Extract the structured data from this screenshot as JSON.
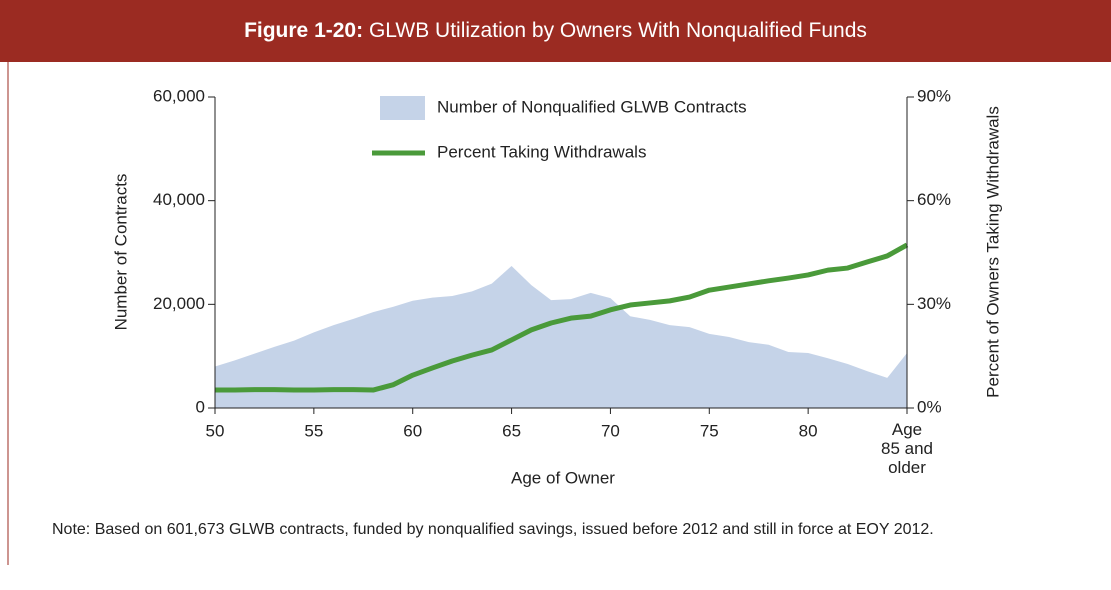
{
  "chart_data": {
    "type": "area_line",
    "figure_label": "Figure 1-20:",
    "title": "GLWB Utilization by Owners With Nonqualified Funds",
    "xlabel": "Age of Owner",
    "ylabel": "Number of Contracts",
    "y2label": "Percent of Owners Taking Withdrawals",
    "note": "Note: Based on 601,673 GLWB contracts, funded by nonqualified savings, issued before 2012 and still in force at EOY 2012.",
    "x": [
      50,
      51,
      52,
      53,
      54,
      55,
      56,
      57,
      58,
      59,
      60,
      61,
      62,
      63,
      64,
      65,
      66,
      67,
      68,
      69,
      70,
      71,
      72,
      73,
      74,
      75,
      76,
      77,
      78,
      79,
      80,
      81,
      82,
      83,
      84,
      85
    ],
    "xlim": [
      50,
      85
    ],
    "xticks": [
      50,
      55,
      60,
      65,
      70,
      75,
      80,
      {
        "value": 85,
        "label": "Age\n85 and\nolder"
      }
    ],
    "ylim": [
      0,
      60000
    ],
    "yticks": [
      0,
      {
        "value": 20000,
        "label": "20,000"
      },
      {
        "value": 40000,
        "label": "40,000"
      },
      {
        "value": 60000,
        "label": "60,000"
      }
    ],
    "y2lim": [
      0,
      90
    ],
    "y2ticks": [
      {
        "value": 0,
        "label": "0%"
      },
      {
        "value": 30,
        "label": "30%"
      },
      {
        "value": 60,
        "label": "60%"
      },
      {
        "value": 90,
        "label": "90%"
      }
    ],
    "series": [
      {
        "name": "Number of Nonqualified GLWB Contracts",
        "kind": "area",
        "color": "#c5d3e8",
        "values": [
          8000,
          9200,
          10500,
          11800,
          13000,
          14600,
          16000,
          17200,
          18500,
          19500,
          20700,
          21300,
          21600,
          22500,
          24000,
          27400,
          23700,
          20800,
          21000,
          22200,
          21200,
          17700,
          17000,
          16000,
          15600,
          14300,
          13700,
          12700,
          12200,
          10800,
          10600,
          9600,
          8500,
          7100,
          5800,
          10600
        ]
      },
      {
        "name": "Percent Taking Withdrawals",
        "kind": "line",
        "color": "#4a9a3a",
        "axis": "y2",
        "values": [
          5.2,
          5.2,
          5.3,
          5.3,
          5.2,
          5.2,
          5.3,
          5.3,
          5.2,
          6.7,
          9.5,
          11.6,
          13.6,
          15.3,
          16.8,
          19.7,
          22.6,
          24.6,
          26.0,
          26.6,
          28.4,
          29.8,
          30.4,
          31.0,
          32.1,
          34.1,
          35.0,
          35.9,
          36.8,
          37.6,
          38.5,
          39.9,
          40.5,
          42.3,
          44.0,
          47.2
        ]
      }
    ]
  }
}
